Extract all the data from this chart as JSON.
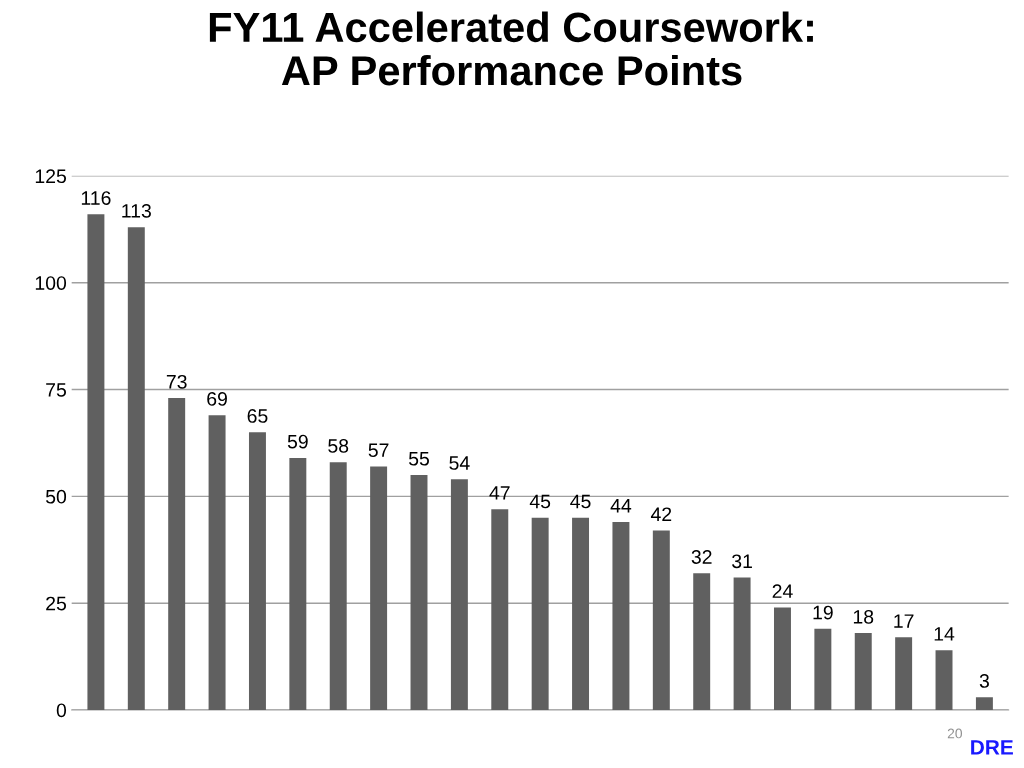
{
  "chart_data": {
    "type": "bar",
    "title": "FY11 Accelerated Coursework:\nAP Performance Points",
    "categories": [
      null,
      null,
      null,
      null,
      null,
      null,
      null,
      null,
      null,
      null,
      null,
      null,
      null,
      null,
      null,
      null,
      null,
      null,
      null,
      null,
      null,
      null,
      null
    ],
    "values": [
      116,
      113,
      73,
      69,
      65,
      59,
      58,
      57,
      55,
      54,
      47,
      45,
      45,
      44,
      42,
      32,
      31,
      24,
      19,
      18,
      17,
      14,
      3
    ],
    "color": "#606060",
    "ylim": [
      0,
      125
    ],
    "yticks": [
      0,
      25,
      50,
      75,
      100,
      125
    ],
    "grid": "y",
    "data_labels": true,
    "annotations": [
      "20",
      "DRE"
    ]
  }
}
